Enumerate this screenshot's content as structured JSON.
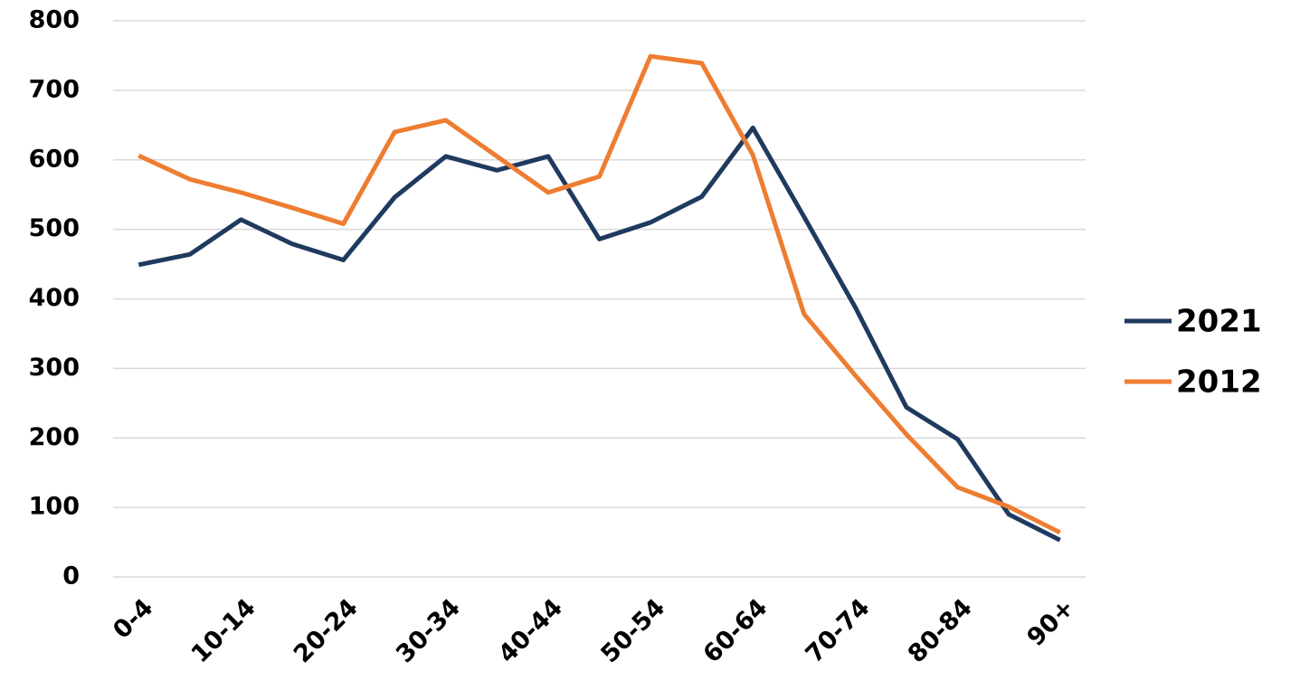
{
  "chart_data": {
    "type": "line",
    "categories": [
      "0-4",
      null,
      "10-14",
      null,
      "20-24",
      null,
      "30-34",
      null,
      "40-44",
      null,
      "50-54",
      null,
      "60-64",
      null,
      "70-74",
      null,
      "80-84",
      null,
      "90+"
    ],
    "series": [
      {
        "name": "2021",
        "color": "#1f3a5f",
        "values": [
          449,
          464,
          514,
          479,
          456,
          546,
          605,
          585,
          605,
          486,
          510,
          547,
          646,
          518,
          388,
          244,
          198,
          90,
          53
        ]
      },
      {
        "name": "2012",
        "color": "#ed7d31",
        "values": [
          606,
          572,
          553,
          531,
          508,
          640,
          657,
          605,
          553,
          576,
          749,
          739,
          607,
          378,
          290,
          205,
          129,
          101,
          64
        ]
      }
    ],
    "ylim": [
      0,
      800
    ],
    "yticks": [
      0,
      100,
      200,
      300,
      400,
      500,
      600,
      700,
      800
    ],
    "grid": true,
    "legend": "right"
  }
}
